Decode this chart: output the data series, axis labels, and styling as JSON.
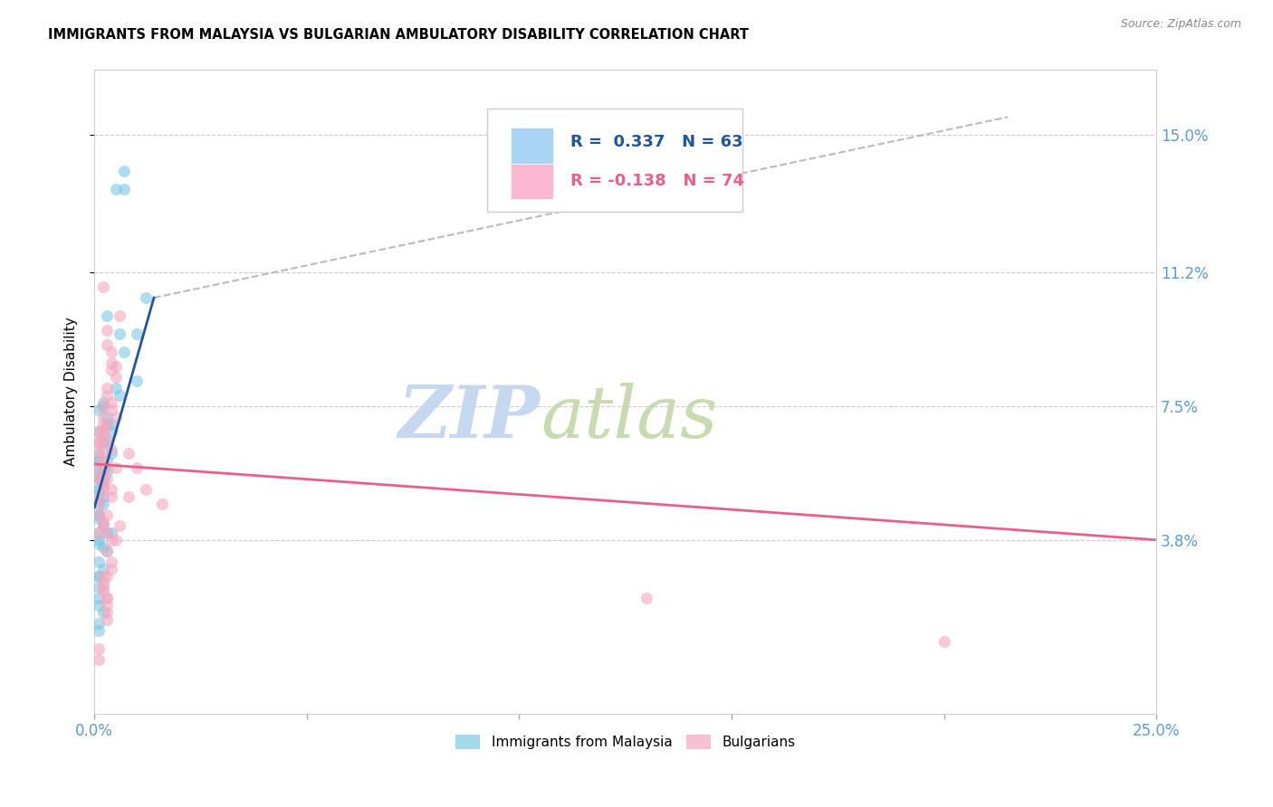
{
  "title": "IMMIGRANTS FROM MALAYSIA VS BULGARIAN AMBULATORY DISABILITY CORRELATION CHART",
  "source": "Source: ZipAtlas.com",
  "ylabel": "Ambulatory Disability",
  "ytick_labels": [
    "15.0%",
    "11.2%",
    "7.5%",
    "3.8%"
  ],
  "ytick_values": [
    0.15,
    0.112,
    0.075,
    0.038
  ],
  "xlim": [
    0.0,
    0.25
  ],
  "ylim": [
    -0.01,
    0.168
  ],
  "watermark_zip": "ZIP",
  "watermark_atlas": "atlas",
  "watermark_color_zip": "#c5d8ef",
  "watermark_color_atlas": "#c8dbb0",
  "axis_label_color": "#5b9bd5",
  "ytick_color": "#5b9bd5",
  "grid_color": "#cccccc",
  "dot_color_blue": "#7ec8e3",
  "dot_color_pink": "#f4a7bf",
  "dot_size": 90,
  "dot_alpha": 0.6,
  "blue_line_color": "#2155a0",
  "pink_line_color": "#e8608a",
  "dash_line_color": "#bbbbbb",
  "legend_r1_text": "R =  0.337   N = 63",
  "legend_r2_text": "R = -0.138   N = 74",
  "legend_r1_color": "#2155a0",
  "legend_r2_color": "#e8608a",
  "legend_box1_color": "#aad4f5",
  "legend_box2_color": "#f9b8d0",
  "blue_scatter_x": [
    0.005,
    0.007,
    0.007,
    0.003,
    0.01,
    0.007,
    0.012,
    0.002,
    0.001,
    0.001,
    0.002,
    0.003,
    0.003,
    0.004,
    0.005,
    0.006,
    0.003,
    0.004,
    0.001,
    0.002,
    0.002,
    0.001,
    0.001,
    0.003,
    0.002,
    0.001,
    0.001,
    0.001,
    0.002,
    0.001,
    0.001,
    0.002,
    0.003,
    0.004,
    0.001,
    0.001,
    0.002,
    0.003,
    0.001,
    0.002,
    0.001,
    0.001,
    0.001,
    0.004,
    0.002,
    0.003,
    0.002,
    0.001,
    0.001,
    0.001,
    0.006,
    0.01,
    0.001,
    0.002,
    0.001,
    0.001,
    0.001,
    0.001,
    0.002,
    0.001,
    0.001,
    0.001,
    0.001
  ],
  "blue_scatter_y": [
    0.135,
    0.14,
    0.135,
    0.1,
    0.095,
    0.09,
    0.105,
    0.076,
    0.074,
    0.068,
    0.075,
    0.072,
    0.07,
    0.068,
    0.08,
    0.095,
    0.065,
    0.062,
    0.06,
    0.058,
    0.058,
    0.056,
    0.055,
    0.057,
    0.054,
    0.052,
    0.06,
    0.055,
    0.05,
    0.045,
    0.044,
    0.042,
    0.04,
    0.04,
    0.038,
    0.037,
    0.036,
    0.035,
    0.032,
    0.03,
    0.028,
    0.028,
    0.025,
    0.07,
    0.065,
    0.06,
    0.055,
    0.05,
    0.048,
    0.02,
    0.078,
    0.082,
    0.015,
    0.018,
    0.013,
    0.022,
    0.055,
    0.052,
    0.048,
    0.062,
    0.058,
    0.045,
    0.04
  ],
  "pink_scatter_x": [
    0.002,
    0.003,
    0.003,
    0.004,
    0.004,
    0.004,
    0.005,
    0.005,
    0.003,
    0.003,
    0.004,
    0.004,
    0.005,
    0.006,
    0.003,
    0.002,
    0.003,
    0.004,
    0.002,
    0.002,
    0.002,
    0.001,
    0.001,
    0.002,
    0.002,
    0.001,
    0.001,
    0.001,
    0.002,
    0.003,
    0.003,
    0.002,
    0.001,
    0.001,
    0.001,
    0.002,
    0.003,
    0.005,
    0.004,
    0.003,
    0.004,
    0.004,
    0.003,
    0.002,
    0.006,
    0.005,
    0.008,
    0.01,
    0.003,
    0.002,
    0.002,
    0.003,
    0.001,
    0.004,
    0.008,
    0.016,
    0.003,
    0.003,
    0.003,
    0.002,
    0.002,
    0.002,
    0.004,
    0.001,
    0.002,
    0.003,
    0.002,
    0.001,
    0.001,
    0.012,
    0.001,
    0.001,
    0.13,
    0.2
  ],
  "pink_scatter_y": [
    0.108,
    0.096,
    0.092,
    0.09,
    0.087,
    0.085,
    0.086,
    0.083,
    0.08,
    0.078,
    0.076,
    0.074,
    0.072,
    0.1,
    0.07,
    0.068,
    0.066,
    0.063,
    0.075,
    0.072,
    0.07,
    0.068,
    0.065,
    0.063,
    0.06,
    0.058,
    0.065,
    0.062,
    0.06,
    0.058,
    0.055,
    0.052,
    0.05,
    0.048,
    0.045,
    0.042,
    0.04,
    0.038,
    0.038,
    0.035,
    0.032,
    0.03,
    0.045,
    0.043,
    0.042,
    0.058,
    0.062,
    0.058,
    0.028,
    0.026,
    0.024,
    0.022,
    0.055,
    0.052,
    0.05,
    0.048,
    0.02,
    0.018,
    0.016,
    0.055,
    0.053,
    0.028,
    0.05,
    0.04,
    0.025,
    0.022,
    0.068,
    0.065,
    0.055,
    0.052,
    0.008,
    0.005,
    0.022,
    0.01
  ],
  "blue_line_x": [
    0.0,
    0.014
  ],
  "blue_line_y": [
    0.047,
    0.105
  ],
  "dash_line_x": [
    0.014,
    0.215
  ],
  "dash_line_y": [
    0.105,
    0.155
  ],
  "pink_line_x": [
    0.0,
    0.25
  ],
  "pink_line_y": [
    0.059,
    0.038
  ]
}
